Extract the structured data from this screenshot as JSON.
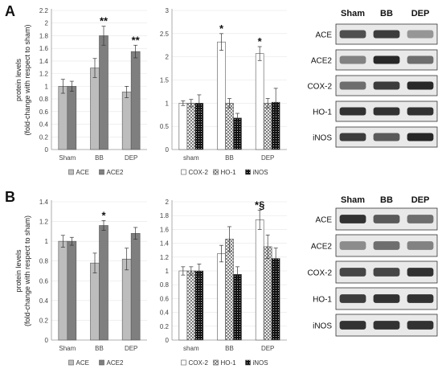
{
  "panels": [
    {
      "label": "A"
    },
    {
      "label": "B"
    }
  ],
  "y_axis_label": {
    "line1": "protein levels",
    "line2": "(fold-change with respect to sham)"
  },
  "colors": {
    "ace": "#bdbdbd",
    "ace2": "#7f7f7f",
    "cox2": "#ffffff",
    "ho1_pattern": "crosshatch",
    "inos": "#111111",
    "axis": "#999999",
    "grid": "#e6e6e6",
    "edge": "#555555"
  },
  "chart_data": [
    {
      "type": "bar",
      "panel": "A",
      "categories": [
        "Sham",
        "BB",
        "DEP"
      ],
      "ylim": [
        0,
        2.2
      ],
      "yticks": [
        "0",
        "0.2",
        "0.4",
        "0.6",
        "0.8",
        "1",
        "1.2",
        "1.4",
        "1.6",
        "1.8",
        "2",
        "2.2"
      ],
      "series": [
        {
          "name": "ACE",
          "values": [
            1.0,
            1.29,
            0.91
          ],
          "errors": [
            0.11,
            0.15,
            0.09
          ],
          "annotations": [
            "",
            "",
            ""
          ]
        },
        {
          "name": "ACE2",
          "values": [
            1.0,
            1.8,
            1.55
          ],
          "errors": [
            0.08,
            0.15,
            0.1
          ],
          "annotations": [
            "",
            "**",
            "**"
          ]
        }
      ]
    },
    {
      "type": "bar",
      "panel": "A",
      "categories": [
        "sham",
        "BB",
        "DEP"
      ],
      "ylim": [
        0,
        3
      ],
      "yticks": [
        "0",
        "0.5",
        "1",
        "1.5",
        "2",
        "2.5",
        "3"
      ],
      "series": [
        {
          "name": "COX-2",
          "values": [
            1.0,
            2.32,
            2.07
          ],
          "errors": [
            0.05,
            0.18,
            0.15
          ],
          "annotations": [
            "",
            "*",
            "*"
          ]
        },
        {
          "name": "HO-1",
          "values": [
            1.0,
            1.0,
            1.0
          ],
          "errors": [
            0.08,
            0.1,
            0.1
          ],
          "annotations": [
            "",
            "",
            ""
          ]
        },
        {
          "name": "iNOS",
          "values": [
            1.0,
            0.68,
            1.02
          ],
          "errors": [
            0.18,
            0.1,
            0.3
          ],
          "annotations": [
            "",
            "",
            ""
          ]
        }
      ]
    },
    {
      "type": "bar",
      "panel": "B",
      "categories": [
        "Sham",
        "BB",
        "DEP"
      ],
      "ylim": [
        0,
        1.4
      ],
      "yticks": [
        "0",
        "0.2",
        "0.4",
        "0.6",
        "0.8",
        "1",
        "1.2",
        "1.4"
      ],
      "series": [
        {
          "name": "ACE",
          "values": [
            1.0,
            0.78,
            0.82
          ],
          "errors": [
            0.06,
            0.1,
            0.11
          ],
          "annotations": [
            "",
            "",
            ""
          ]
        },
        {
          "name": "ACE2",
          "values": [
            1.0,
            1.16,
            1.08
          ],
          "errors": [
            0.04,
            0.05,
            0.06
          ],
          "annotations": [
            "",
            "*",
            ""
          ]
        }
      ]
    },
    {
      "type": "bar",
      "panel": "B",
      "categories": [
        "sham",
        "BB",
        "DEP"
      ],
      "ylim": [
        0,
        2
      ],
      "yticks": [
        "0",
        "0.2",
        "0.4",
        "0.6",
        "0.8",
        "1",
        "1.2",
        "1.4",
        "1.6",
        "1.8",
        "2"
      ],
      "series": [
        {
          "name": "COX-2",
          "values": [
            1.0,
            1.25,
            1.74
          ],
          "errors": [
            0.06,
            0.12,
            0.14
          ],
          "annotations": [
            "",
            "",
            "*§"
          ]
        },
        {
          "name": "HO-1",
          "values": [
            1.0,
            1.46,
            1.35
          ],
          "errors": [
            0.06,
            0.18,
            0.17
          ],
          "annotations": [
            "",
            "",
            ""
          ]
        },
        {
          "name": "iNOS",
          "values": [
            1.0,
            0.95,
            1.18
          ],
          "errors": [
            0.1,
            0.11,
            0.15
          ],
          "annotations": [
            "",
            "",
            ""
          ]
        }
      ]
    }
  ],
  "western_blots": [
    {
      "panel": "A",
      "columns": [
        "Sham",
        "BB",
        "DEP"
      ],
      "rows": [
        {
          "label": "ACE",
          "intensities": [
            0.75,
            0.85,
            0.4
          ]
        },
        {
          "label": "ACE2",
          "intensities": [
            0.5,
            0.95,
            0.6
          ]
        },
        {
          "label": "COX-2",
          "intensities": [
            0.6,
            0.85,
            0.95
          ]
        },
        {
          "label": "HO-1",
          "intensities": [
            0.9,
            0.9,
            0.9
          ]
        },
        {
          "label": "iNOS",
          "intensities": [
            0.85,
            0.7,
            0.95
          ]
        }
      ]
    },
    {
      "panel": "B",
      "columns": [
        "Sham",
        "BB",
        "DEP"
      ],
      "rows": [
        {
          "label": "ACE",
          "intensities": [
            0.9,
            0.7,
            0.6
          ]
        },
        {
          "label": "ACE2",
          "intensities": [
            0.45,
            0.6,
            0.5
          ]
        },
        {
          "label": "COX-2",
          "intensities": [
            0.8,
            0.8,
            0.9
          ]
        },
        {
          "label": "HO-1",
          "intensities": [
            0.85,
            0.9,
            0.9
          ]
        },
        {
          "label": "iNOS",
          "intensities": [
            0.9,
            0.9,
            0.9
          ]
        }
      ]
    }
  ]
}
